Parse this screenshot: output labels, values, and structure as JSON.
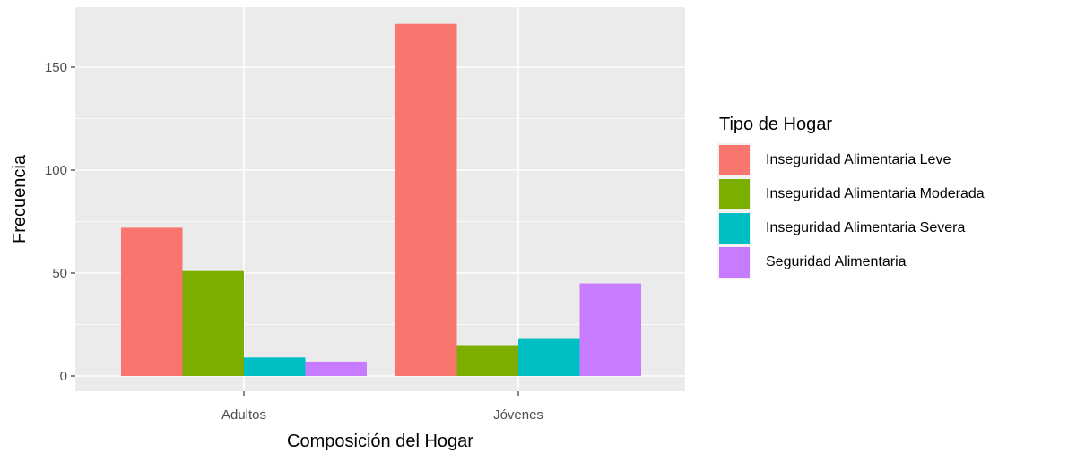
{
  "chart_data": {
    "type": "bar",
    "title": "",
    "xlabel": "Composición del Hogar",
    "ylabel": "Frecuencia",
    "categories": [
      "Adultos",
      "Jóvenes"
    ],
    "ylim": [
      0,
      175
    ],
    "yticks": [
      0,
      50,
      100,
      150
    ],
    "grid": true,
    "legend_title": "Tipo de Hogar",
    "legend_position": "right",
    "series": [
      {
        "name": "Inseguridad Alimentaria Leve",
        "color": "#F8766D",
        "values": [
          72,
          171
        ]
      },
      {
        "name": "Inseguridad Alimentaria Moderada",
        "color": "#7CAE00",
        "values": [
          51,
          15
        ]
      },
      {
        "name": "Inseguridad Alimentaria Severa",
        "color": "#00BFC4",
        "values": [
          9,
          18
        ]
      },
      {
        "name": "Seguridad Alimentaria",
        "color": "#C77CFF",
        "values": [
          7,
          45
        ]
      }
    ]
  }
}
